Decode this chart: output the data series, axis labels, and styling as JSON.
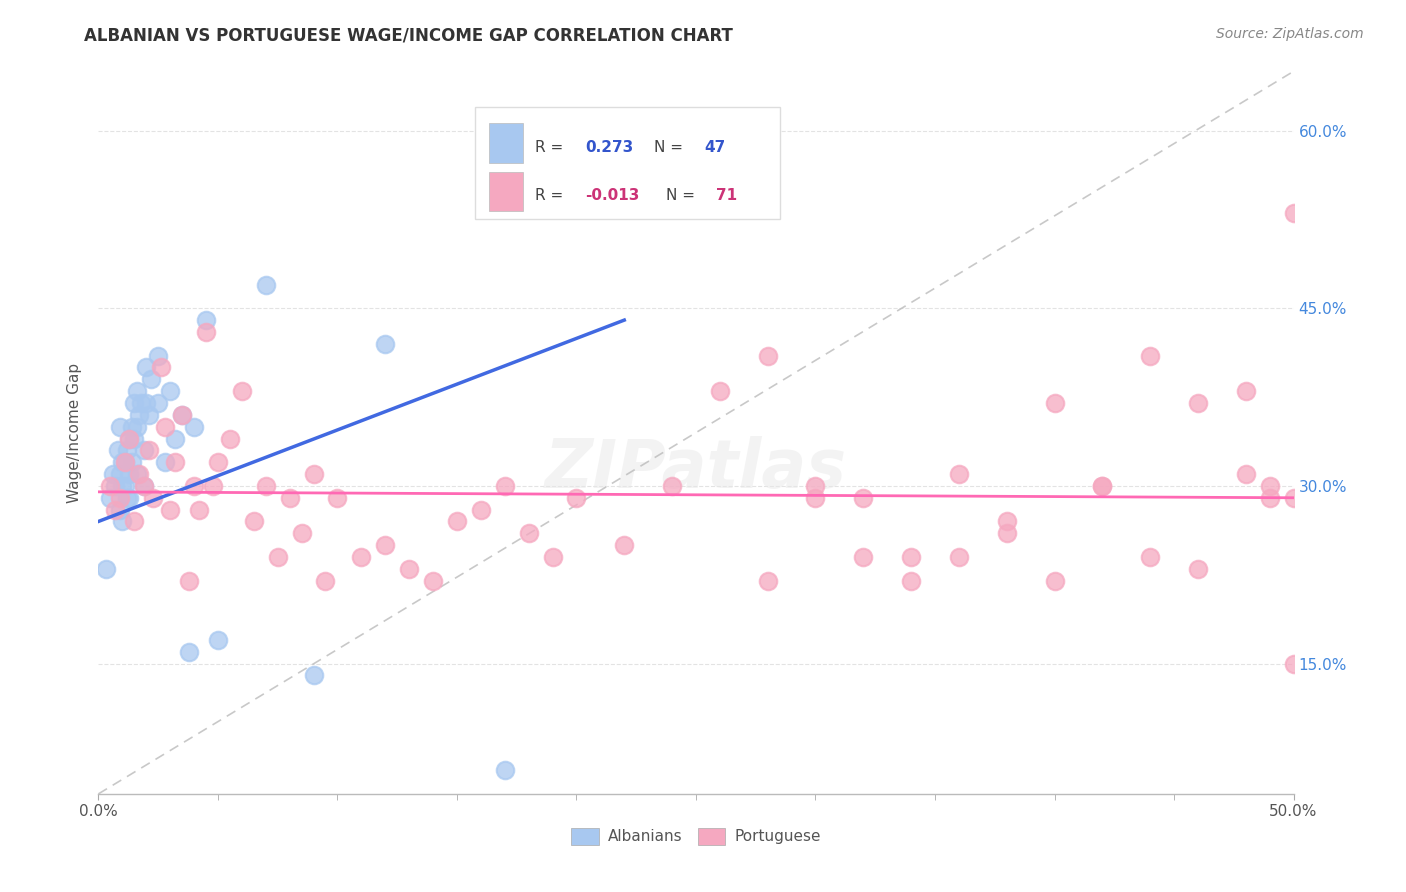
{
  "title": "ALBANIAN VS PORTUGUESE WAGE/INCOME GAP CORRELATION CHART",
  "source": "Source: ZipAtlas.com",
  "ylabel": "Wage/Income Gap",
  "xlim": [
    0.0,
    0.5
  ],
  "ylim": [
    0.04,
    0.65
  ],
  "albanian_color": "#A8C8F0",
  "albanian_edge_color": "#A8C8F0",
  "portuguese_color": "#F5A8C0",
  "portuguese_edge_color": "#F5A8C0",
  "albanian_line_color": "#4169E1",
  "portuguese_line_color": "#FF69B4",
  "trend_line_color": "#BBBBBB",
  "background_color": "#FFFFFF",
  "grid_color": "#DDDDDD",
  "legend_box_color": "#F5F5F5",
  "legend_box_edge": "#DDDDDD",
  "r_color_albanian": "#3355CC",
  "r_color_portuguese": "#CC3377",
  "albanian_x": [
    0.003,
    0.005,
    0.006,
    0.007,
    0.008,
    0.009,
    0.009,
    0.009,
    0.01,
    0.01,
    0.01,
    0.011,
    0.011,
    0.012,
    0.012,
    0.013,
    0.013,
    0.013,
    0.014,
    0.014,
    0.015,
    0.015,
    0.016,
    0.016,
    0.016,
    0.017,
    0.018,
    0.019,
    0.019,
    0.02,
    0.02,
    0.021,
    0.022,
    0.025,
    0.025,
    0.028,
    0.03,
    0.032,
    0.035,
    0.038,
    0.04,
    0.045,
    0.05,
    0.07,
    0.09,
    0.12,
    0.17
  ],
  "albanian_y": [
    0.23,
    0.29,
    0.31,
    0.3,
    0.33,
    0.35,
    0.31,
    0.28,
    0.32,
    0.3,
    0.27,
    0.32,
    0.3,
    0.33,
    0.29,
    0.34,
    0.31,
    0.29,
    0.35,
    0.32,
    0.37,
    0.34,
    0.38,
    0.35,
    0.31,
    0.36,
    0.37,
    0.33,
    0.3,
    0.4,
    0.37,
    0.36,
    0.39,
    0.41,
    0.37,
    0.32,
    0.38,
    0.34,
    0.36,
    0.16,
    0.35,
    0.44,
    0.17,
    0.47,
    0.14,
    0.42,
    0.06
  ],
  "portuguese_x": [
    0.005,
    0.007,
    0.009,
    0.011,
    0.013,
    0.015,
    0.017,
    0.019,
    0.021,
    0.023,
    0.026,
    0.028,
    0.03,
    0.032,
    0.035,
    0.038,
    0.04,
    0.042,
    0.045,
    0.048,
    0.05,
    0.055,
    0.06,
    0.065,
    0.07,
    0.075,
    0.08,
    0.085,
    0.09,
    0.095,
    0.1,
    0.11,
    0.12,
    0.13,
    0.14,
    0.15,
    0.16,
    0.17,
    0.18,
    0.19,
    0.2,
    0.22,
    0.24,
    0.26,
    0.28,
    0.3,
    0.32,
    0.34,
    0.36,
    0.38,
    0.4,
    0.42,
    0.44,
    0.46,
    0.48,
    0.49,
    0.49,
    0.5,
    0.5,
    0.5,
    0.48,
    0.46,
    0.44,
    0.42,
    0.4,
    0.38,
    0.36,
    0.34,
    0.32,
    0.3,
    0.28
  ],
  "portuguese_y": [
    0.3,
    0.28,
    0.29,
    0.32,
    0.34,
    0.27,
    0.31,
    0.3,
    0.33,
    0.29,
    0.4,
    0.35,
    0.28,
    0.32,
    0.36,
    0.22,
    0.3,
    0.28,
    0.43,
    0.3,
    0.32,
    0.34,
    0.38,
    0.27,
    0.3,
    0.24,
    0.29,
    0.26,
    0.31,
    0.22,
    0.29,
    0.24,
    0.25,
    0.23,
    0.22,
    0.27,
    0.28,
    0.3,
    0.26,
    0.24,
    0.29,
    0.25,
    0.3,
    0.38,
    0.41,
    0.3,
    0.29,
    0.24,
    0.31,
    0.27,
    0.37,
    0.3,
    0.24,
    0.23,
    0.31,
    0.3,
    0.29,
    0.15,
    0.29,
    0.53,
    0.38,
    0.37,
    0.41,
    0.3,
    0.22,
    0.26,
    0.24,
    0.22,
    0.24,
    0.29,
    0.22
  ]
}
